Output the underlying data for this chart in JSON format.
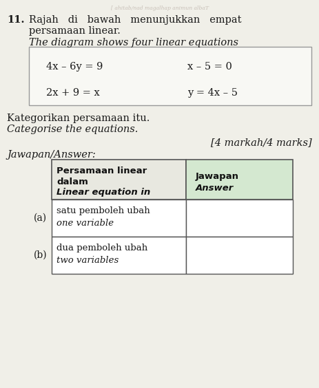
{
  "background_color": "#f0efe8",
  "question_number": "11.",
  "title_line1": "Rajah   di   bawah   menunjukkan   empat",
  "title_line2": "persamaan linear.",
  "title_italic": "The diagram shows four linear equations",
  "kategorikan_line1": "Kategorikan persamaan itu.",
  "kategorikan_line2": "Categorise the equations.",
  "marks": "[4 markah/4 marks]",
  "jawapan_label": "Jawapan/Answer:",
  "table_header_col1_line1": "Persamaan linear",
  "table_header_col1_line2": "dalam",
  "table_header_col1_line3": "Linear equation in",
  "table_header_col2_line1": "Jawapan",
  "table_header_col2_line2": "Answer",
  "row_a_label": "(a)",
  "row_a_col1_line1": "satu pemboleh ubah",
  "row_a_col1_line2": "one variable",
  "row_b_label": "(b)",
  "row_b_col1_line1": "dua pemboleh ubah",
  "row_b_col1_line2": "two variables",
  "header_col2_bg": "#d4e8d0",
  "header_col1_bg": "#e8e8e0",
  "eq_box_bg": "#f8f8f4",
  "eq_box_border": "#999999",
  "table_border": "#555555",
  "text_color": "#1a1a1a",
  "watermark_color": "#c8c0b8",
  "watermark_text": "[ ahitab/nad magalhap animun albaT",
  "eq1": "4x – 6y = 9",
  "eq2": "x – 5 = 0",
  "eq3": "2x + 9 = x",
  "eq4": "y = 4x – 5"
}
